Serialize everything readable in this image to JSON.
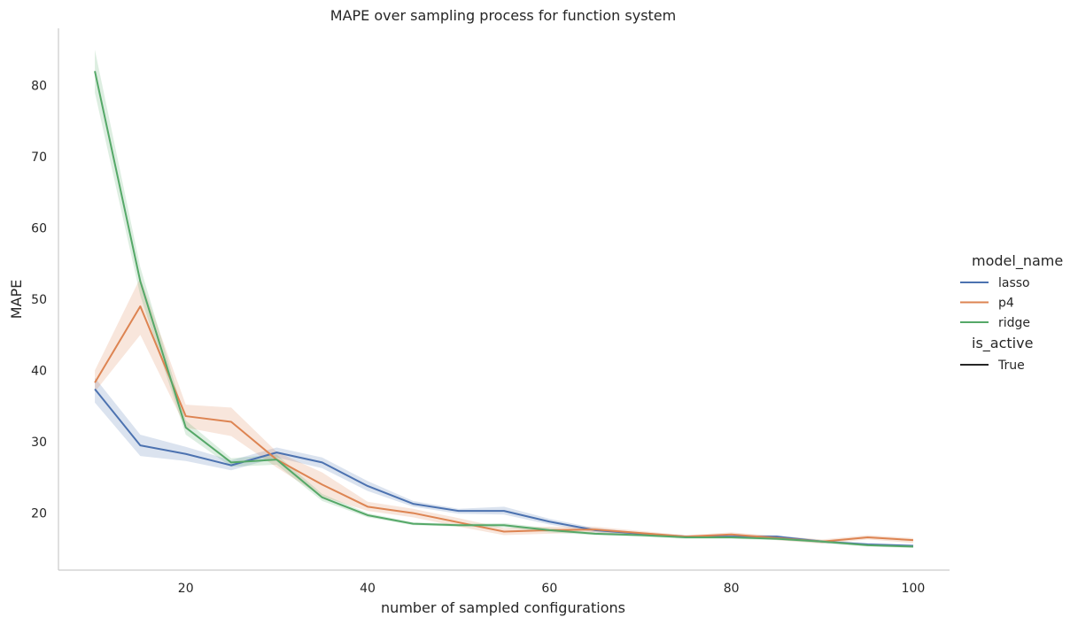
{
  "chart_data": {
    "type": "line",
    "title": "MAPE over sampling process for function system",
    "xlabel": "number of sampled configurations",
    "ylabel": "MAPE",
    "xlim": [
      6,
      104
    ],
    "ylim": [
      12,
      88
    ],
    "xticks": [
      20,
      40,
      60,
      80,
      100
    ],
    "yticks": [
      20,
      30,
      40,
      50,
      60,
      70,
      80
    ],
    "grid": false,
    "x": [
      10,
      15,
      20,
      25,
      30,
      35,
      40,
      45,
      50,
      55,
      60,
      65,
      70,
      75,
      80,
      85,
      90,
      95,
      100
    ],
    "series": [
      {
        "name": "lasso",
        "color": "#4c72b0",
        "values": [
          37.4,
          29.5,
          28.3,
          26.7,
          28.5,
          27.1,
          23.8,
          21.3,
          20.3,
          20.3,
          18.8,
          17.6,
          17.1,
          16.7,
          16.7,
          16.7,
          16.0,
          15.6,
          15.4
        ],
        "lower": [
          35.5,
          28.0,
          27.3,
          26.0,
          27.8,
          26.3,
          23.1,
          20.9,
          19.9,
          19.8,
          18.4,
          17.3,
          16.9,
          16.5,
          16.5,
          16.4,
          15.8,
          15.4,
          15.2
        ],
        "upper": [
          39.0,
          31.0,
          29.3,
          27.4,
          29.2,
          27.8,
          24.5,
          21.7,
          20.6,
          20.9,
          19.2,
          17.9,
          17.3,
          16.9,
          16.9,
          16.9,
          16.2,
          15.8,
          15.6
        ]
      },
      {
        "name": "p4",
        "color": "#dd8452",
        "values": [
          38.3,
          49.0,
          33.6,
          32.8,
          27.5,
          24.0,
          20.9,
          20.0,
          18.7,
          17.4,
          17.6,
          17.7,
          17.2,
          16.7,
          17.0,
          16.5,
          16.0,
          16.6,
          16.2
        ],
        "lower": [
          37.0,
          45.0,
          32.0,
          30.8,
          26.4,
          22.3,
          20.3,
          19.4,
          18.1,
          16.9,
          17.1,
          17.3,
          16.9,
          16.5,
          16.7,
          16.2,
          15.7,
          16.3,
          15.8
        ],
        "upper": [
          40.0,
          53.0,
          35.2,
          34.8,
          28.6,
          25.7,
          21.6,
          20.6,
          19.3,
          17.9,
          18.1,
          18.1,
          17.5,
          16.9,
          17.3,
          16.8,
          16.3,
          16.9,
          16.5
        ]
      },
      {
        "name": "ridge",
        "color": "#55a868",
        "values": [
          82.0,
          52.5,
          32.0,
          27.1,
          27.5,
          22.2,
          19.7,
          18.5,
          18.3,
          18.3,
          17.6,
          17.1,
          16.9,
          16.6,
          16.6,
          16.4,
          16.0,
          15.5,
          15.3
        ],
        "lower": [
          79.0,
          50.5,
          31.0,
          26.5,
          26.8,
          21.7,
          19.4,
          18.3,
          18.1,
          18.0,
          17.3,
          16.9,
          16.7,
          16.4,
          16.4,
          16.2,
          15.8,
          15.3,
          15.1
        ],
        "upper": [
          85.0,
          54.5,
          33.0,
          27.7,
          28.2,
          22.7,
          20.0,
          18.7,
          18.5,
          18.6,
          17.9,
          17.3,
          17.1,
          16.8,
          16.8,
          16.6,
          16.2,
          15.7,
          15.5
        ]
      }
    ],
    "legend": {
      "placement": "right",
      "hue_title": "model_name",
      "style_title": "is_active",
      "style_entries": [
        {
          "name": "True",
          "color": "#262626"
        }
      ]
    }
  }
}
